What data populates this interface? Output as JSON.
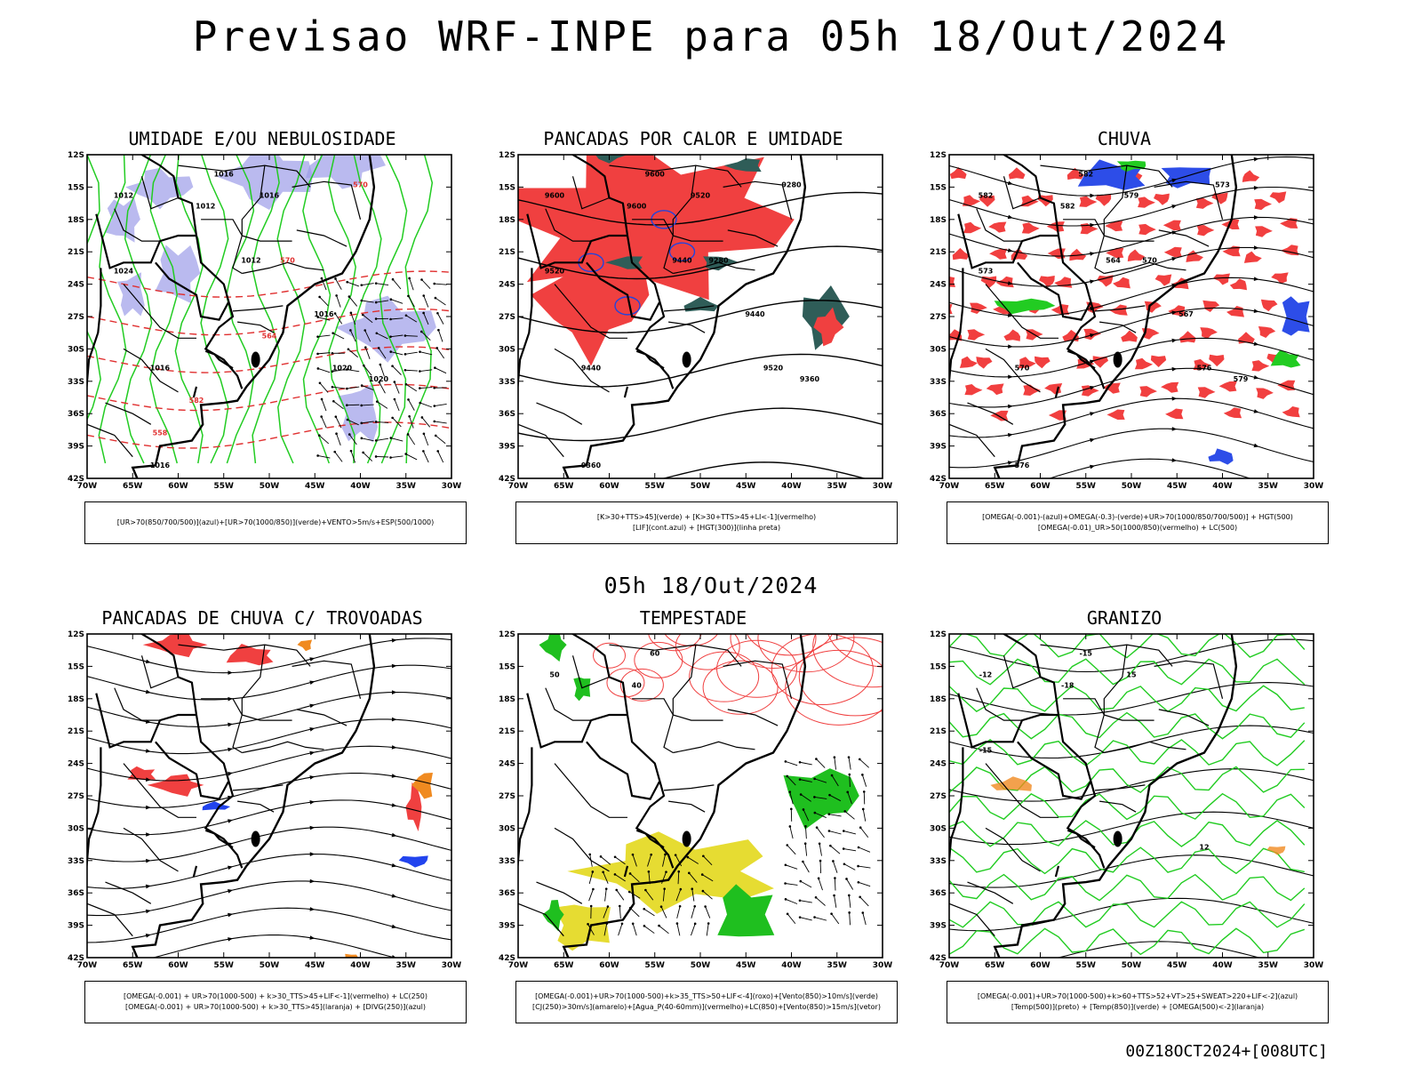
{
  "title": "Previsao WRF-INPE  para 05h 18/Out/2024",
  "mid_title": "05h 18/Out/2024",
  "footer": "00Z18OCT2024+[008UTC]",
  "axes": {
    "lat_labels": [
      "12S",
      "15S",
      "18S",
      "21S",
      "24S",
      "27S",
      "30S",
      "33S",
      "36S",
      "39S",
      "42S"
    ],
    "lon_labels": [
      "70W",
      "65W",
      "60W",
      "55W",
      "50W",
      "45W",
      "40W",
      "35W",
      "30W"
    ]
  },
  "panels": [
    {
      "id": "umidade",
      "title": "UMIDADE E/OU NEBULOSIDADE",
      "legend": [
        "[UR>70(850/700/500)](azul)+[UR>70(1000/850)](verde)+VENTO>5m/s+ESP(500/1000)"
      ],
      "contour_labels": [
        "1016",
        "1012",
        "1012",
        "1016",
        "1020",
        "1024",
        "1016",
        "1016",
        "1012",
        "1020",
        "1016",
        "570",
        "570",
        "564",
        "558",
        "582"
      ],
      "colors": {
        "fill": "#9c9ce8",
        "contour": "#22cc22",
        "dashed": "#e03030"
      }
    },
    {
      "id": "pancadas-calor",
      "title": "PANCADAS POR CALOR E UMIDADE",
      "legend": [
        "[K>30+TTS>45](verde) + [K>30+TTS>45+LI<-1](vermelho)",
        "[LIF](cont.azul) + [HGT(300)](linha preta)"
      ],
      "contour_labels": [
        "9600",
        "9600",
        "9600",
        "9520",
        "9520",
        "9520",
        "9440",
        "9440",
        "9440",
        "9360",
        "9360",
        "9280",
        "9280"
      ],
      "colors": {
        "fill": "#f04040",
        "fill2": "#2f5d58",
        "contour": "#2244dd"
      }
    },
    {
      "id": "chuva",
      "title": "CHUVA",
      "legend": [
        "[OMEGA(-0.001)-(azul)+OMEGA(-0.3)-(verde)+UR>70(1000/850/700/500)] + HGT(500)",
        "[OMEGA(-0.01)_UR>50(1000/850)(vermelho) + LC(500)"
      ],
      "contour_labels": [
        "582",
        "582",
        "582",
        "579",
        "576",
        "573",
        "570",
        "567",
        "564",
        "579",
        "576",
        "573",
        "570"
      ],
      "colors": {
        "fill": "#f03535",
        "fill2": "#2d4de8",
        "fill3": "#22cc22"
      }
    },
    {
      "id": "trovoadas",
      "title": "PANCADAS DE CHUVA C/ TROVOADAS",
      "legend": [
        "[OMEGA(-0.001) + UR>70(1000-500) + k>30_TTS>45+LIF<-1](vermelho) + LC(250)",
        "[OMEGA(-0.001) + UR>70(1000-500) + k>30_TTS>45](laranja) + [DIVG(250)](azul)"
      ],
      "contour_labels": [],
      "colors": {
        "fill": "#f04040",
        "fill2": "#f08a20",
        "fill3": "#2244ee"
      }
    },
    {
      "id": "tempestade",
      "title": "TEMPESTADE",
      "legend": [
        "[OMEGA(-0.001)+UR>70(1000-500)+k>35_TTS>50+LIF<-4](roxo)+[Vento(850)>10m/s](verde)",
        "[CJ(250)>30m/s](amarelo)+[Agua_P(40-60mm)](vermelho)+LC(850)+[Vento(850)>15m/s](vetor)"
      ],
      "contour_labels": [
        "60",
        "50",
        "40"
      ],
      "colors": {
        "fill": "#e6dc32",
        "fill2": "#1fbf1f",
        "contour": "#f04040"
      }
    },
    {
      "id": "granizo",
      "title": "GRANIZO",
      "legend": [
        "[OMEGA(-0.001)+UR>70(1000-500)+k>60+TTS>52+VT>25+SWEAT>220+LIF<-2](azul)",
        "[Temp(500)](preto) + [Temp(850)](verde) + [OMEGA(500)<-2](laranja)"
      ],
      "contour_labels": [
        "-15",
        "-12",
        "-18",
        "15",
        "12",
        "-15"
      ],
      "colors": {
        "contour": "#22cc22",
        "contour2": "#f08a20"
      }
    }
  ]
}
